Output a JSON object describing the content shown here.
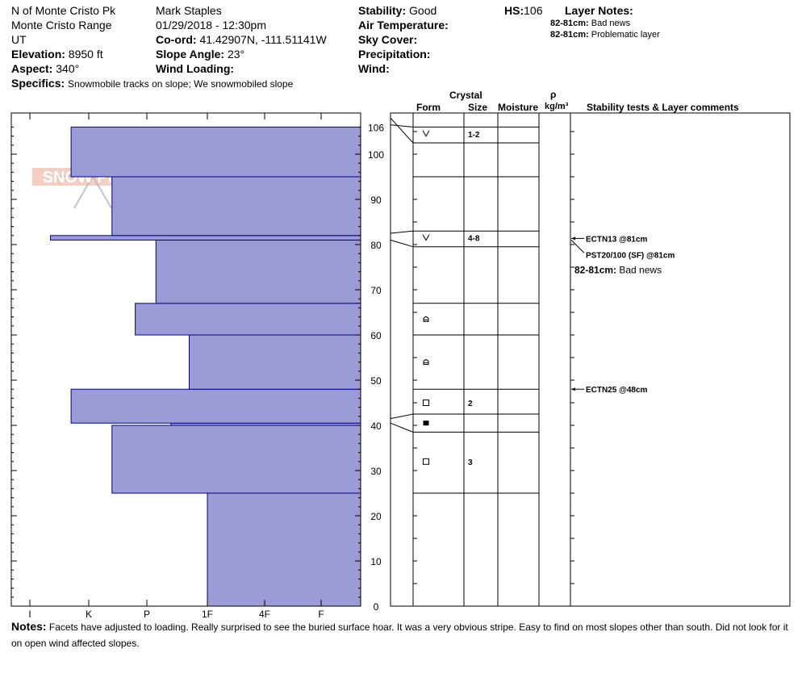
{
  "header": {
    "location": "N of Monte Cristo Pk",
    "range": "Monte Cristo Range",
    "state": "UT",
    "elevation_label": "Elevation:",
    "elevation": "8950 ft",
    "aspect_label": "Aspect:",
    "aspect": "340°",
    "specifics_label": "Specifics:",
    "specifics": "Snowmobile tracks on slope; We snowmobiled slope",
    "observer": "Mark Staples",
    "datetime": "01/29/2018 - 12:30pm",
    "coord_label": "Co-ord:",
    "coord": "41.42907N, -111.51141W",
    "slope_label": "Slope Angle:",
    "slope": "23°",
    "wind_loading_label": "Wind Loading:",
    "stability_label": "Stability:",
    "stability": "Good",
    "air_temp_label": "Air Temperature:",
    "sky_label": "Sky Cover:",
    "precip_label": "Precipitation:",
    "wind_label": "Wind:",
    "hs_label": "HS:",
    "hs": "106",
    "layer_notes_label": "Layer Notes:",
    "layer_notes": [
      {
        "range": "82-81cm:",
        "text": "Bad news"
      },
      {
        "range": "82-81cm:",
        "text": "Problematic layer"
      }
    ]
  },
  "columns": {
    "crystal": "Crystal",
    "form": "Form",
    "size": "Size",
    "moisture": "Moisture",
    "rho": "ρ",
    "density_unit": "kg/m³",
    "comments": "Stability tests & Layer comments"
  },
  "logo_text": "SNOW PILOT",
  "chart_data": {
    "type": "snow-profile",
    "hardness_scale": [
      "I",
      "K",
      "P",
      "1F",
      "4F",
      "F"
    ],
    "height_ticks": [
      0,
      10,
      20,
      30,
      40,
      50,
      60,
      70,
      80,
      90,
      100,
      106
    ],
    "ylim": [
      0,
      106
    ],
    "hardness_profile": [
      {
        "bottom": 0,
        "top": 25,
        "hardness": 3.0
      },
      {
        "bottom": 25,
        "top": 40,
        "hardness": 1.4
      },
      {
        "bottom": 40,
        "top": 40.5,
        "hardness": 2.4
      },
      {
        "bottom": 40.5,
        "top": 48,
        "hardness": 0.7
      },
      {
        "bottom": 48,
        "top": 60,
        "hardness": 2.7
      },
      {
        "bottom": 60,
        "top": 67,
        "hardness": 1.8
      },
      {
        "bottom": 67,
        "top": 81,
        "hardness": 2.15
      },
      {
        "bottom": 81,
        "top": 82,
        "hardness": 0.35
      },
      {
        "bottom": 82,
        "top": 95,
        "hardness": 1.4
      },
      {
        "bottom": 95,
        "top": 106,
        "hardness": 0.7
      }
    ],
    "layer_boundaries": [
      106,
      102.5,
      95,
      83,
      79.5,
      67,
      60,
      48,
      42.5,
      38.5,
      25
    ],
    "layers": [
      {
        "height": 104.5,
        "form": "surface-hoar",
        "size": "1-2"
      },
      {
        "height": 81.5,
        "form": "surface-hoar",
        "size": "4-8"
      },
      {
        "height": 63.5,
        "form": "rounding-facet",
        "size": ""
      },
      {
        "height": 54,
        "form": "rounding-facet",
        "size": ""
      },
      {
        "height": 45,
        "form": "facet",
        "size": "2"
      },
      {
        "height": 40.5,
        "form": "melt-crust",
        "size": ""
      },
      {
        "height": 32,
        "form": "facet",
        "size": "3"
      }
    ],
    "stability_tests": [
      {
        "height": 81,
        "label": "ECTN13 @81cm"
      },
      {
        "height": 81,
        "label": "PST20/100 (SF) @81cm"
      },
      {
        "height": 48,
        "label": "ECTN25 @48cm"
      }
    ],
    "layer_comments": [
      {
        "height": 81,
        "range": "82-81cm:",
        "text": "Bad news"
      }
    ]
  },
  "notes_label": "Notes:",
  "notes": "Facets have adjusted to loading. Really surprised to see the buried surface hoar. It was a very obvious stripe. Easy to find on most slopes other than south. Did not look for it on open wind affected slopes.",
  "colors": {
    "fill": "#9b9bd6",
    "stroke": "#00008b",
    "logo": "#e8a890"
  }
}
